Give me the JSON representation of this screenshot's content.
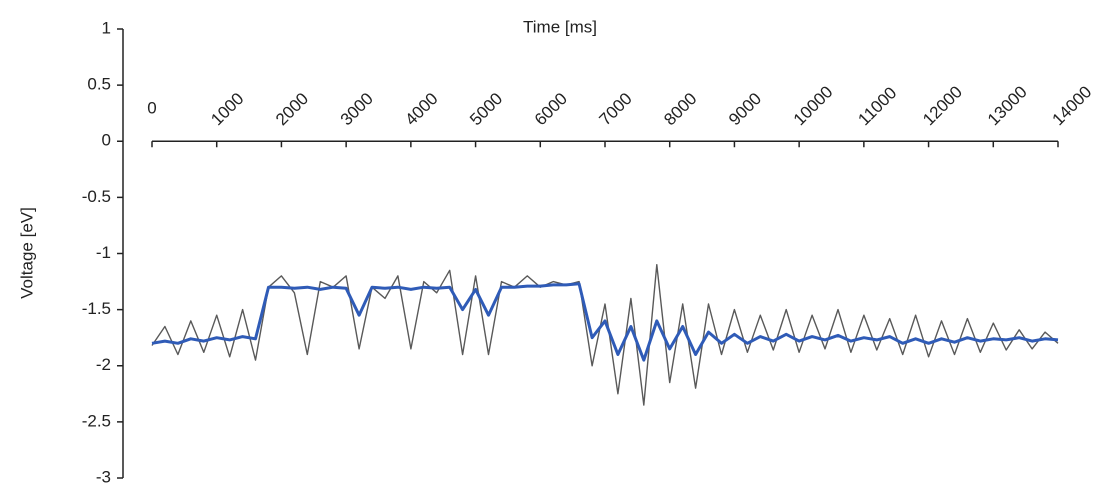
{
  "chart_data": {
    "type": "line",
    "title": "Time [ms]",
    "y_label": "Voltage [eV]",
    "x": [
      0,
      200,
      400,
      600,
      800,
      1000,
      1200,
      1400,
      1600,
      1800,
      2000,
      2200,
      2400,
      2600,
      2800,
      3000,
      3200,
      3400,
      3600,
      3800,
      4000,
      4200,
      4400,
      4600,
      4800,
      5000,
      5200,
      5400,
      5600,
      5800,
      6000,
      6200,
      6400,
      6600,
      6800,
      7000,
      7200,
      7400,
      7600,
      7800,
      8000,
      8200,
      8400,
      8600,
      8800,
      9000,
      9200,
      9400,
      9600,
      9800,
      10000,
      10200,
      10400,
      10600,
      10800,
      11000,
      11200,
      11400,
      11600,
      11800,
      12000,
      12200,
      12400,
      12600,
      12800,
      13000,
      13200,
      13400,
      13600,
      13800,
      14000
    ],
    "series": [
      {
        "color": "#595959",
        "values": [
          -1.82,
          -1.65,
          -1.9,
          -1.6,
          -1.88,
          -1.55,
          -1.92,
          -1.5,
          -1.95,
          -1.3,
          -1.2,
          -1.35,
          -1.9,
          -1.25,
          -1.3,
          -1.2,
          -1.85,
          -1.3,
          -1.4,
          -1.2,
          -1.85,
          -1.25,
          -1.35,
          -1.15,
          -1.9,
          -1.2,
          -1.9,
          -1.25,
          -1.3,
          -1.2,
          -1.3,
          -1.25,
          -1.28,
          -1.25,
          -2.0,
          -1.45,
          -2.25,
          -1.4,
          -2.35,
          -1.1,
          -2.15,
          -1.45,
          -2.2,
          -1.45,
          -1.9,
          -1.5,
          -1.88,
          -1.55,
          -1.86,
          -1.5,
          -1.88,
          -1.55,
          -1.85,
          -1.5,
          -1.88,
          -1.55,
          -1.86,
          -1.58,
          -1.9,
          -1.55,
          -1.92,
          -1.6,
          -1.9,
          -1.58,
          -1.88,
          -1.62,
          -1.86,
          -1.68,
          -1.85,
          -1.7,
          -1.8
        ]
      },
      {
        "color": "#2f5bb7",
        "values": [
          -1.8,
          -1.78,
          -1.8,
          -1.76,
          -1.78,
          -1.75,
          -1.77,
          -1.74,
          -1.76,
          -1.3,
          -1.3,
          -1.31,
          -1.3,
          -1.32,
          -1.3,
          -1.31,
          -1.55,
          -1.3,
          -1.31,
          -1.3,
          -1.32,
          -1.3,
          -1.31,
          -1.3,
          -1.5,
          -1.32,
          -1.55,
          -1.3,
          -1.3,
          -1.29,
          -1.29,
          -1.28,
          -1.28,
          -1.27,
          -1.75,
          -1.6,
          -1.9,
          -1.65,
          -1.95,
          -1.6,
          -1.85,
          -1.65,
          -1.9,
          -1.7,
          -1.8,
          -1.72,
          -1.8,
          -1.74,
          -1.78,
          -1.72,
          -1.78,
          -1.74,
          -1.77,
          -1.73,
          -1.78,
          -1.75,
          -1.77,
          -1.74,
          -1.8,
          -1.76,
          -1.8,
          -1.76,
          -1.79,
          -1.75,
          -1.78,
          -1.76,
          -1.77,
          -1.75,
          -1.78,
          -1.76,
          -1.77
        ]
      }
    ],
    "xlim": [
      0,
      14000
    ],
    "xticks": [
      0,
      1000,
      2000,
      3000,
      4000,
      5000,
      6000,
      7000,
      8000,
      9000,
      10000,
      11000,
      12000,
      13000,
      14000
    ],
    "ylim": [
      -3,
      1
    ],
    "yticks": [
      1,
      0.5,
      0,
      -0.5,
      -1,
      -1.5,
      -2,
      -2.5,
      -3
    ]
  }
}
